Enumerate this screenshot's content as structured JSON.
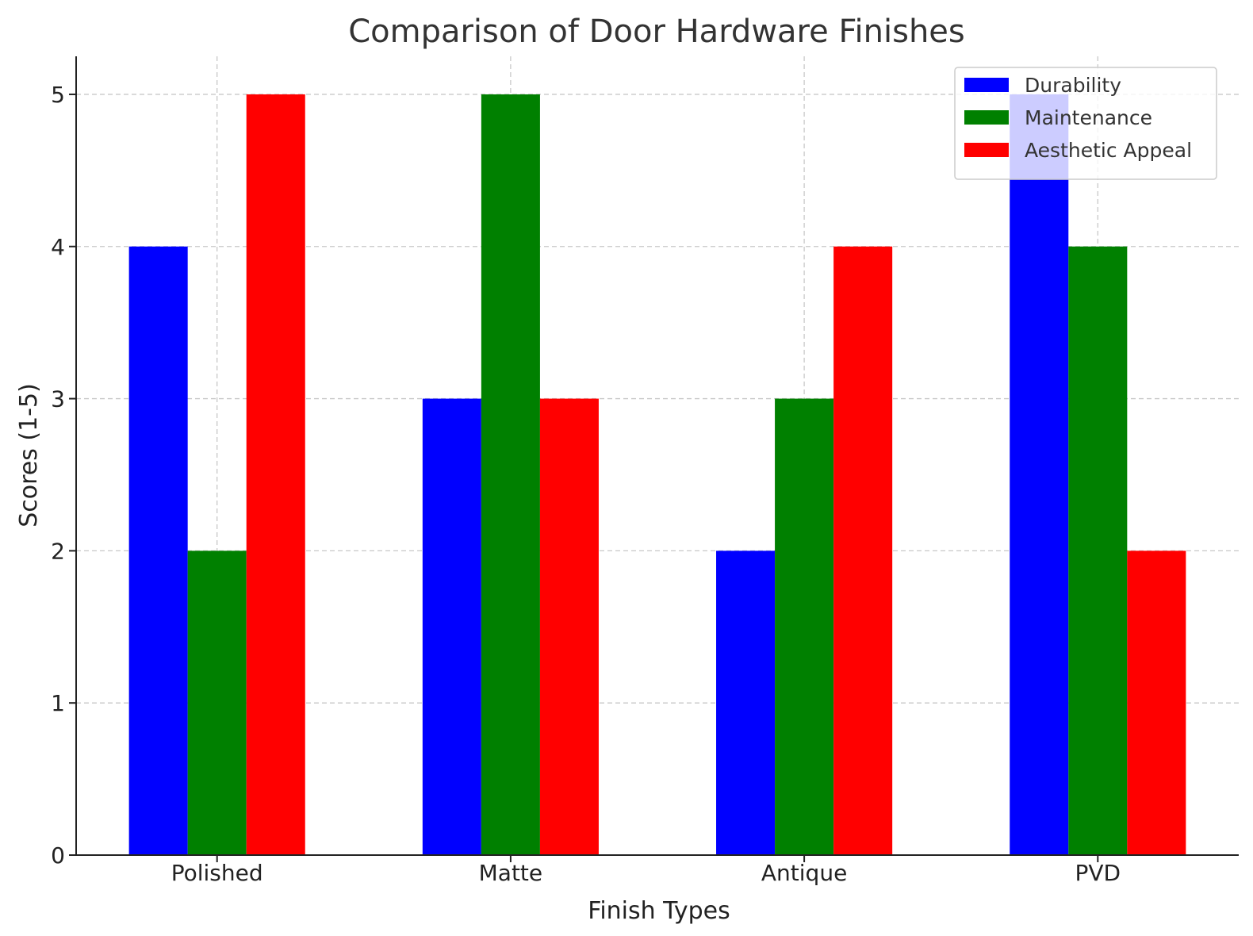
{
  "chart_data": {
    "type": "bar",
    "title": "Comparison of Door Hardware Finishes",
    "xlabel": "Finish Types",
    "ylabel": "Scores (1-5)",
    "categories": [
      "Polished",
      "Matte",
      "Antique",
      "PVD"
    ],
    "series": [
      {
        "name": "Durability",
        "values": [
          4,
          3,
          2,
          5
        ],
        "color": "#0000ff"
      },
      {
        "name": "Maintenance",
        "values": [
          2,
          5,
          3,
          4
        ],
        "color": "#008000"
      },
      {
        "name": "Aesthetic Appeal",
        "values": [
          5,
          3,
          4,
          2
        ],
        "color": "#ff0000"
      }
    ],
    "yticks": [
      0,
      1,
      2,
      3,
      4,
      5
    ],
    "ylim": [
      0,
      5.25
    ],
    "grid": true,
    "legend_position": "top-right"
  }
}
